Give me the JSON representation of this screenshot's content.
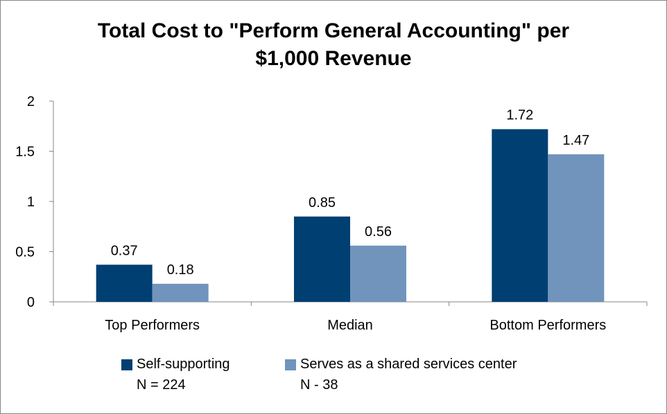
{
  "chart_data": {
    "type": "bar",
    "title": [
      "Total Cost to \"Perform General Accounting\" per",
      "$1,000 Revenue"
    ],
    "categories": [
      "Top Performers",
      "Median",
      "Bottom Performers"
    ],
    "series": [
      {
        "name": "Self-supporting",
        "subtitle": "N = 224",
        "color": "#003F72",
        "values": [
          0.37,
          0.85,
          1.72
        ],
        "labels": [
          "0.37",
          "0.85",
          "1.72"
        ]
      },
      {
        "name": "Serves as a shared services center",
        "subtitle": "N - 38",
        "color": "#7094BB",
        "values": [
          0.18,
          0.56,
          1.47
        ],
        "labels": [
          "0.18",
          "0.56",
          "1.47"
        ]
      }
    ],
    "yticks": [
      "0",
      "0.5",
      "1",
      "1.5",
      "2"
    ],
    "ylim": [
      0,
      2
    ],
    "xlabel": "",
    "ylabel": "",
    "grid": false,
    "legend_position": "bottom"
  }
}
